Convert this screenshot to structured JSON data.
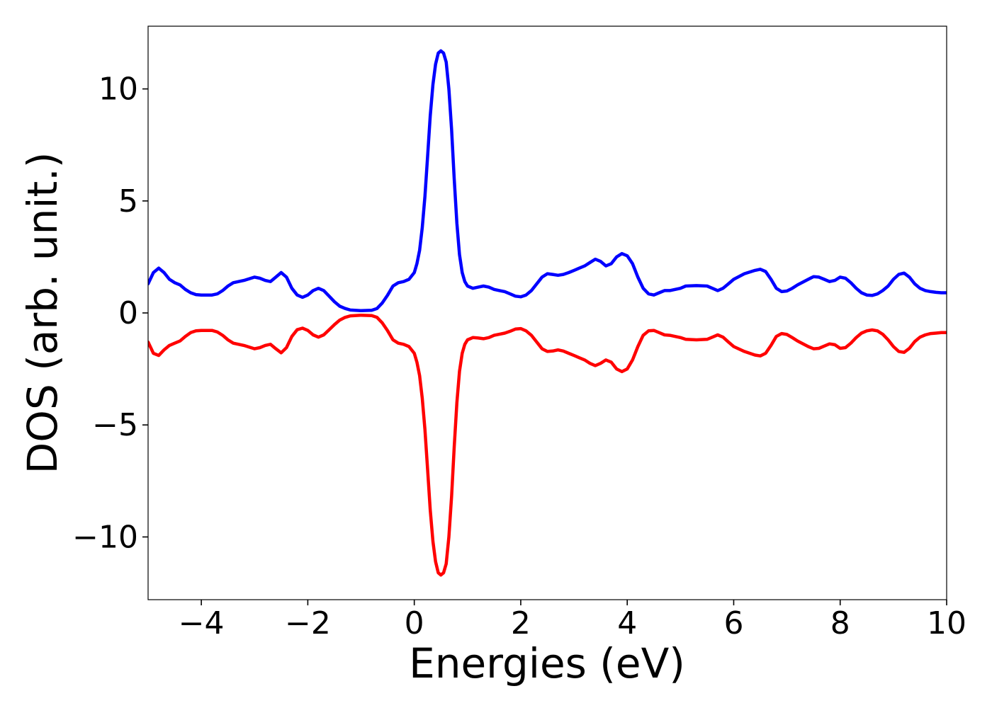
{
  "chart_data": {
    "type": "line",
    "title": "",
    "xlabel": "Energies (eV)",
    "ylabel": "DOS (arb. unit.)",
    "xlim": [
      -5,
      10
    ],
    "ylim": [
      -12.8,
      12.8
    ],
    "x_ticks": [
      -4,
      -2,
      0,
      2,
      4,
      6,
      8,
      10
    ],
    "x_tick_labels": [
      "−4",
      "−2",
      "0",
      "2",
      "4",
      "6",
      "8",
      "10"
    ],
    "y_ticks": [
      -10,
      -5,
      0,
      5,
      10
    ],
    "y_tick_labels": [
      "−10",
      "−5",
      "0",
      "5",
      "10"
    ],
    "grid": false,
    "legend": "none",
    "series": [
      {
        "color": "#0000ff",
        "points": [
          [
            -5.0,
            1.3
          ],
          [
            -4.9,
            1.8
          ],
          [
            -4.8,
            2.0
          ],
          [
            -4.7,
            1.8
          ],
          [
            -4.6,
            1.5
          ],
          [
            -4.5,
            1.35
          ],
          [
            -4.4,
            1.25
          ],
          [
            -4.3,
            1.05
          ],
          [
            -4.2,
            0.9
          ],
          [
            -4.1,
            0.82
          ],
          [
            -4.0,
            0.8
          ],
          [
            -3.8,
            0.8
          ],
          [
            -3.7,
            0.85
          ],
          [
            -3.6,
            1.0
          ],
          [
            -3.5,
            1.2
          ],
          [
            -3.4,
            1.35
          ],
          [
            -3.2,
            1.45
          ],
          [
            -3.0,
            1.6
          ],
          [
            -2.9,
            1.55
          ],
          [
            -2.8,
            1.45
          ],
          [
            -2.7,
            1.4
          ],
          [
            -2.6,
            1.6
          ],
          [
            -2.5,
            1.8
          ],
          [
            -2.4,
            1.6
          ],
          [
            -2.3,
            1.1
          ],
          [
            -2.2,
            0.8
          ],
          [
            -2.1,
            0.7
          ],
          [
            -2.0,
            0.8
          ],
          [
            -1.9,
            1.0
          ],
          [
            -1.8,
            1.1
          ],
          [
            -1.7,
            1.0
          ],
          [
            -1.6,
            0.75
          ],
          [
            -1.5,
            0.5
          ],
          [
            -1.4,
            0.3
          ],
          [
            -1.3,
            0.2
          ],
          [
            -1.2,
            0.13
          ],
          [
            -1.0,
            0.1
          ],
          [
            -0.8,
            0.12
          ],
          [
            -0.7,
            0.2
          ],
          [
            -0.6,
            0.45
          ],
          [
            -0.5,
            0.8
          ],
          [
            -0.4,
            1.2
          ],
          [
            -0.3,
            1.35
          ],
          [
            -0.2,
            1.4
          ],
          [
            -0.1,
            1.5
          ],
          [
            0.0,
            1.8
          ],
          [
            0.05,
            2.2
          ],
          [
            0.1,
            2.8
          ],
          [
            0.15,
            3.8
          ],
          [
            0.2,
            5.2
          ],
          [
            0.25,
            7.0
          ],
          [
            0.3,
            8.8
          ],
          [
            0.35,
            10.2
          ],
          [
            0.4,
            11.1
          ],
          [
            0.45,
            11.6
          ],
          [
            0.5,
            11.7
          ],
          [
            0.55,
            11.6
          ],
          [
            0.6,
            11.2
          ],
          [
            0.65,
            10.0
          ],
          [
            0.7,
            8.2
          ],
          [
            0.75,
            6.0
          ],
          [
            0.8,
            4.0
          ],
          [
            0.85,
            2.6
          ],
          [
            0.9,
            1.8
          ],
          [
            0.95,
            1.4
          ],
          [
            1.0,
            1.2
          ],
          [
            1.1,
            1.1
          ],
          [
            1.2,
            1.15
          ],
          [
            1.3,
            1.2
          ],
          [
            1.4,
            1.15
          ],
          [
            1.5,
            1.05
          ],
          [
            1.6,
            1.0
          ],
          [
            1.7,
            0.95
          ],
          [
            1.8,
            0.85
          ],
          [
            1.9,
            0.75
          ],
          [
            2.0,
            0.72
          ],
          [
            2.1,
            0.8
          ],
          [
            2.2,
            1.0
          ],
          [
            2.3,
            1.3
          ],
          [
            2.4,
            1.6
          ],
          [
            2.5,
            1.75
          ],
          [
            2.6,
            1.72
          ],
          [
            2.7,
            1.68
          ],
          [
            2.8,
            1.72
          ],
          [
            2.9,
            1.8
          ],
          [
            3.0,
            1.9
          ],
          [
            3.1,
            2.0
          ],
          [
            3.2,
            2.1
          ],
          [
            3.3,
            2.25
          ],
          [
            3.4,
            2.4
          ],
          [
            3.5,
            2.3
          ],
          [
            3.6,
            2.1
          ],
          [
            3.7,
            2.2
          ],
          [
            3.8,
            2.5
          ],
          [
            3.9,
            2.65
          ],
          [
            4.0,
            2.55
          ],
          [
            4.1,
            2.2
          ],
          [
            4.2,
            1.6
          ],
          [
            4.3,
            1.1
          ],
          [
            4.4,
            0.85
          ],
          [
            4.5,
            0.8
          ],
          [
            4.6,
            0.9
          ],
          [
            4.7,
            1.0
          ],
          [
            4.8,
            1.0
          ],
          [
            4.9,
            1.05
          ],
          [
            5.0,
            1.1
          ],
          [
            5.1,
            1.2
          ],
          [
            5.3,
            1.22
          ],
          [
            5.5,
            1.2
          ],
          [
            5.6,
            1.1
          ],
          [
            5.7,
            1.0
          ],
          [
            5.8,
            1.1
          ],
          [
            5.9,
            1.3
          ],
          [
            6.0,
            1.5
          ],
          [
            6.2,
            1.75
          ],
          [
            6.4,
            1.9
          ],
          [
            6.5,
            1.95
          ],
          [
            6.6,
            1.85
          ],
          [
            6.7,
            1.5
          ],
          [
            6.8,
            1.1
          ],
          [
            6.9,
            0.95
          ],
          [
            7.0,
            0.98
          ],
          [
            7.1,
            1.1
          ],
          [
            7.2,
            1.25
          ],
          [
            7.4,
            1.5
          ],
          [
            7.5,
            1.62
          ],
          [
            7.6,
            1.6
          ],
          [
            7.7,
            1.5
          ],
          [
            7.8,
            1.4
          ],
          [
            7.9,
            1.45
          ],
          [
            8.0,
            1.6
          ],
          [
            8.1,
            1.55
          ],
          [
            8.2,
            1.35
          ],
          [
            8.3,
            1.1
          ],
          [
            8.4,
            0.9
          ],
          [
            8.5,
            0.8
          ],
          [
            8.6,
            0.78
          ],
          [
            8.7,
            0.85
          ],
          [
            8.8,
            1.0
          ],
          [
            8.9,
            1.2
          ],
          [
            9.0,
            1.5
          ],
          [
            9.1,
            1.72
          ],
          [
            9.2,
            1.78
          ],
          [
            9.3,
            1.6
          ],
          [
            9.4,
            1.3
          ],
          [
            9.5,
            1.1
          ],
          [
            9.6,
            1.0
          ],
          [
            9.7,
            0.95
          ],
          [
            9.8,
            0.92
          ],
          [
            9.9,
            0.9
          ],
          [
            10.0,
            0.9
          ]
        ]
      },
      {
        "color": "#ff0000",
        "points": [
          [
            -5.0,
            -1.3
          ],
          [
            -4.9,
            -1.8
          ],
          [
            -4.8,
            -1.9
          ],
          [
            -4.7,
            -1.65
          ],
          [
            -4.6,
            -1.45
          ],
          [
            -4.5,
            -1.35
          ],
          [
            -4.4,
            -1.25
          ],
          [
            -4.3,
            -1.05
          ],
          [
            -4.2,
            -0.88
          ],
          [
            -4.1,
            -0.8
          ],
          [
            -4.0,
            -0.78
          ],
          [
            -3.8,
            -0.78
          ],
          [
            -3.7,
            -0.85
          ],
          [
            -3.6,
            -1.0
          ],
          [
            -3.5,
            -1.2
          ],
          [
            -3.4,
            -1.35
          ],
          [
            -3.2,
            -1.45
          ],
          [
            -3.0,
            -1.6
          ],
          [
            -2.9,
            -1.55
          ],
          [
            -2.8,
            -1.45
          ],
          [
            -2.7,
            -1.4
          ],
          [
            -2.6,
            -1.6
          ],
          [
            -2.5,
            -1.78
          ],
          [
            -2.4,
            -1.55
          ],
          [
            -2.3,
            -1.05
          ],
          [
            -2.2,
            -0.75
          ],
          [
            -2.1,
            -0.68
          ],
          [
            -2.0,
            -0.78
          ],
          [
            -1.9,
            -0.98
          ],
          [
            -1.8,
            -1.08
          ],
          [
            -1.7,
            -0.98
          ],
          [
            -1.6,
            -0.75
          ],
          [
            -1.5,
            -0.52
          ],
          [
            -1.4,
            -0.32
          ],
          [
            -1.3,
            -0.2
          ],
          [
            -1.2,
            -0.13
          ],
          [
            -1.0,
            -0.1
          ],
          [
            -0.8,
            -0.12
          ],
          [
            -0.7,
            -0.2
          ],
          [
            -0.6,
            -0.45
          ],
          [
            -0.5,
            -0.8
          ],
          [
            -0.4,
            -1.2
          ],
          [
            -0.3,
            -1.35
          ],
          [
            -0.2,
            -1.4
          ],
          [
            -0.1,
            -1.5
          ],
          [
            0.0,
            -1.8
          ],
          [
            0.05,
            -2.2
          ],
          [
            0.1,
            -2.8
          ],
          [
            0.15,
            -3.8
          ],
          [
            0.2,
            -5.2
          ],
          [
            0.25,
            -7.0
          ],
          [
            0.3,
            -8.8
          ],
          [
            0.35,
            -10.2
          ],
          [
            0.4,
            -11.1
          ],
          [
            0.45,
            -11.6
          ],
          [
            0.5,
            -11.7
          ],
          [
            0.55,
            -11.6
          ],
          [
            0.6,
            -11.2
          ],
          [
            0.65,
            -10.0
          ],
          [
            0.7,
            -8.2
          ],
          [
            0.75,
            -6.0
          ],
          [
            0.8,
            -4.0
          ],
          [
            0.85,
            -2.6
          ],
          [
            0.9,
            -1.8
          ],
          [
            0.95,
            -1.4
          ],
          [
            1.0,
            -1.2
          ],
          [
            1.1,
            -1.1
          ],
          [
            1.2,
            -1.12
          ],
          [
            1.3,
            -1.15
          ],
          [
            1.4,
            -1.1
          ],
          [
            1.5,
            -1.0
          ],
          [
            1.6,
            -0.95
          ],
          [
            1.7,
            -0.9
          ],
          [
            1.8,
            -0.82
          ],
          [
            1.9,
            -0.72
          ],
          [
            2.0,
            -0.7
          ],
          [
            2.1,
            -0.8
          ],
          [
            2.2,
            -1.0
          ],
          [
            2.3,
            -1.3
          ],
          [
            2.4,
            -1.6
          ],
          [
            2.5,
            -1.72
          ],
          [
            2.6,
            -1.7
          ],
          [
            2.7,
            -1.65
          ],
          [
            2.8,
            -1.7
          ],
          [
            2.9,
            -1.8
          ],
          [
            3.0,
            -1.9
          ],
          [
            3.1,
            -2.0
          ],
          [
            3.2,
            -2.1
          ],
          [
            3.3,
            -2.25
          ],
          [
            3.4,
            -2.35
          ],
          [
            3.5,
            -2.25
          ],
          [
            3.6,
            -2.1
          ],
          [
            3.7,
            -2.2
          ],
          [
            3.8,
            -2.5
          ],
          [
            3.9,
            -2.62
          ],
          [
            4.0,
            -2.5
          ],
          [
            4.1,
            -2.1
          ],
          [
            4.2,
            -1.5
          ],
          [
            4.3,
            -1.0
          ],
          [
            4.4,
            -0.8
          ],
          [
            4.5,
            -0.78
          ],
          [
            4.6,
            -0.88
          ],
          [
            4.7,
            -0.98
          ],
          [
            4.8,
            -1.0
          ],
          [
            4.9,
            -1.05
          ],
          [
            5.0,
            -1.1
          ],
          [
            5.1,
            -1.18
          ],
          [
            5.3,
            -1.2
          ],
          [
            5.5,
            -1.18
          ],
          [
            5.6,
            -1.08
          ],
          [
            5.7,
            -0.98
          ],
          [
            5.8,
            -1.08
          ],
          [
            5.9,
            -1.3
          ],
          [
            6.0,
            -1.5
          ],
          [
            6.2,
            -1.72
          ],
          [
            6.4,
            -1.88
          ],
          [
            6.5,
            -1.92
          ],
          [
            6.6,
            -1.8
          ],
          [
            6.7,
            -1.45
          ],
          [
            6.8,
            -1.05
          ],
          [
            6.9,
            -0.92
          ],
          [
            7.0,
            -0.96
          ],
          [
            7.1,
            -1.1
          ],
          [
            7.2,
            -1.25
          ],
          [
            7.4,
            -1.5
          ],
          [
            7.5,
            -1.6
          ],
          [
            7.6,
            -1.58
          ],
          [
            7.7,
            -1.48
          ],
          [
            7.8,
            -1.38
          ],
          [
            7.9,
            -1.42
          ],
          [
            8.0,
            -1.58
          ],
          [
            8.1,
            -1.55
          ],
          [
            8.2,
            -1.35
          ],
          [
            8.3,
            -1.1
          ],
          [
            8.4,
            -0.9
          ],
          [
            8.5,
            -0.8
          ],
          [
            8.6,
            -0.76
          ],
          [
            8.7,
            -0.8
          ],
          [
            8.8,
            -0.95
          ],
          [
            8.9,
            -1.2
          ],
          [
            9.0,
            -1.5
          ],
          [
            9.1,
            -1.72
          ],
          [
            9.2,
            -1.76
          ],
          [
            9.3,
            -1.58
          ],
          [
            9.4,
            -1.28
          ],
          [
            9.5,
            -1.08
          ],
          [
            9.6,
            -0.98
          ],
          [
            9.7,
            -0.92
          ],
          [
            9.8,
            -0.9
          ],
          [
            9.9,
            -0.88
          ],
          [
            10.0,
            -0.88
          ]
        ]
      }
    ]
  }
}
